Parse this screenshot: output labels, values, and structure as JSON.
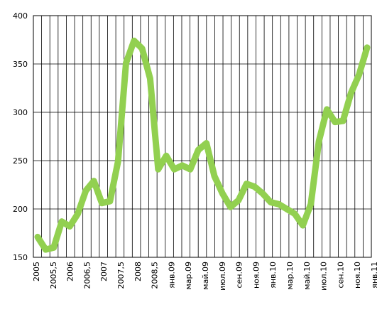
{
  "chart_data": {
    "type": "line",
    "title": "",
    "xlabel": "",
    "ylabel": "",
    "ylim": [
      150,
      400
    ],
    "yticks": [
      150,
      200,
      250,
      300,
      350,
      400
    ],
    "grid": true,
    "line_color": "#92d050",
    "grid_color": "#000000",
    "x_labels": [
      "2005",
      "2005,5",
      "2006",
      "2006,5",
      "2007",
      "2007,5",
      "2008",
      "2008,5",
      "янв.09",
      "мар.09",
      "май.09",
      "июл.09",
      "сен.09",
      "ноя.09",
      "янв.10",
      "мар.10",
      "май.10",
      "июл.10",
      "сен.10",
      "ноя.10",
      "янв.11"
    ],
    "series": [
      {
        "values": [
          171,
          158,
          160,
          187,
          182,
          195,
          219,
          229,
          206,
          208,
          249,
          351,
          374,
          366,
          335,
          241,
          255,
          241,
          245,
          241,
          261,
          268,
          234,
          216,
          202,
          209,
          226,
          223,
          216,
          207,
          205,
          200,
          195,
          183,
          205,
          270,
          303,
          290,
          291,
          320,
          339,
          367
        ]
      }
    ]
  }
}
